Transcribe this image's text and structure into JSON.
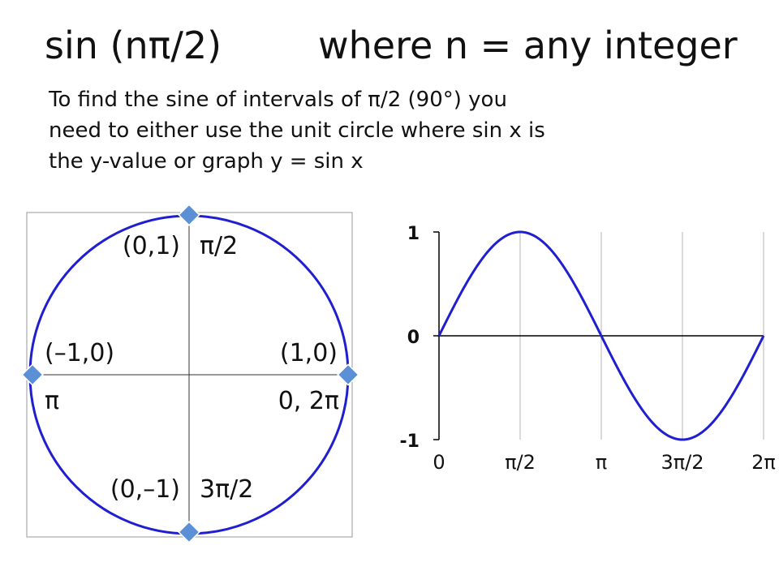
{
  "slide": {
    "title_left": "sin (nπ/2)",
    "title_right": "where n = any integer",
    "description_lines": [
      "To find the sine of intervals of π/2 (90°) you",
      "need to either use the unit circle where sin x is",
      "the y-value or graph y = sin x"
    ]
  },
  "unit_circle": {
    "labels": {
      "top_coord": "(0,1)",
      "top_angle": "π/2",
      "left_coord": "(–1,0)",
      "left_angle": "π",
      "right_coord": "(1,0)",
      "right_angle": "0, 2π",
      "bottom_coord": "(0,–1)",
      "bottom_angle": "3π/2"
    },
    "circle_color": "#1f1fd1",
    "marker_color": "#5b8fd6"
  },
  "chart_data": {
    "type": "line",
    "function": "y = sin x",
    "x_tick_labels": [
      "0",
      "π/2",
      "π",
      "3π/2",
      "2π"
    ],
    "x_tick_values": [
      0,
      1.5708,
      3.1416,
      4.7124,
      6.2832
    ],
    "y_tick_labels": [
      "1",
      "0",
      "-1"
    ],
    "y_tick_values": [
      1,
      0,
      -1
    ],
    "xlim": [
      0,
      6.2832
    ],
    "ylim": [
      -1,
      1
    ],
    "grid": "vertical",
    "series": [
      {
        "color": "#1f1fd1",
        "x": [
          0,
          0.3927,
          0.7854,
          1.1781,
          1.5708,
          1.9635,
          2.3562,
          2.7489,
          3.1416,
          3.5343,
          3.927,
          4.3197,
          4.7124,
          5.1051,
          5.4978,
          5.8905,
          6.2832
        ],
        "y": [
          0,
          0.3827,
          0.7071,
          0.9239,
          1,
          0.9239,
          0.7071,
          0.3827,
          0,
          -0.3827,
          -0.7071,
          -0.9239,
          -1,
          -0.9239,
          -0.7071,
          -0.3827,
          0
        ]
      }
    ]
  }
}
